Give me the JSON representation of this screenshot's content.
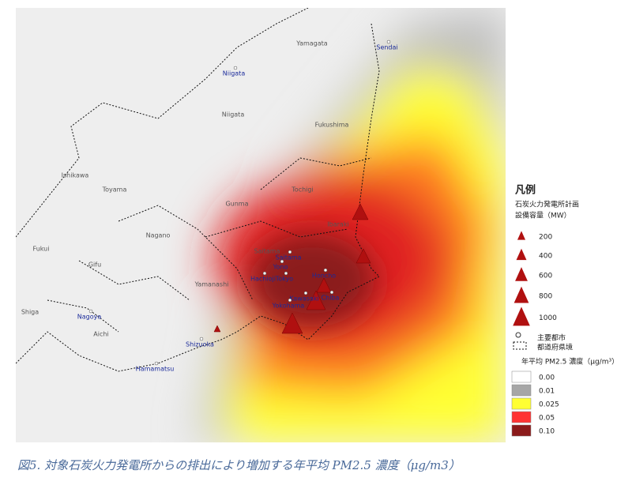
{
  "map": {
    "prefecture_labels": [
      "Yamagata",
      "Niigata",
      "Fukushima",
      "Ishikawa",
      "Toyama",
      "Tochigi",
      "Gunma",
      "Ibaraki",
      "Nagano",
      "Fukui",
      "Gifu",
      "Saitama",
      "Yamanashi",
      "Shiga",
      "Aichi"
    ],
    "city_labels": [
      "Sendai",
      "Niigata",
      "Saitama",
      "Yono",
      "Honcho",
      "Hachioji",
      "Tokyo",
      "Kawasaki",
      "Chiba",
      "Yokohama",
      "Nagoya",
      "Shizuoka",
      "Hamamatsu"
    ]
  },
  "legend": {
    "title": "凡例",
    "plant_title": "石炭火力発電所計画",
    "plant_subtitle": "設備容量（MW）",
    "plant_sizes": [
      200,
      400,
      600,
      800,
      1000
    ],
    "major_city": "主要都市",
    "prefecture_border": "都道府県境",
    "concentration_title": "年平均 PM2.5 濃度（μg/m³）",
    "concentration_levels": [
      {
        "label": "0.00",
        "color": "#ffffff"
      },
      {
        "label": "0.01",
        "color": "#a6a6a6"
      },
      {
        "label": "0.025",
        "color": "#ffff33"
      },
      {
        "label": "0.05",
        "color": "#ff3333"
      },
      {
        "label": "0.10",
        "color": "#8b1a1a"
      }
    ]
  },
  "caption": "図5. 対象石炭火力発電所からの排出により増加する年平均 PM2.5 濃度（μg/m3）"
}
